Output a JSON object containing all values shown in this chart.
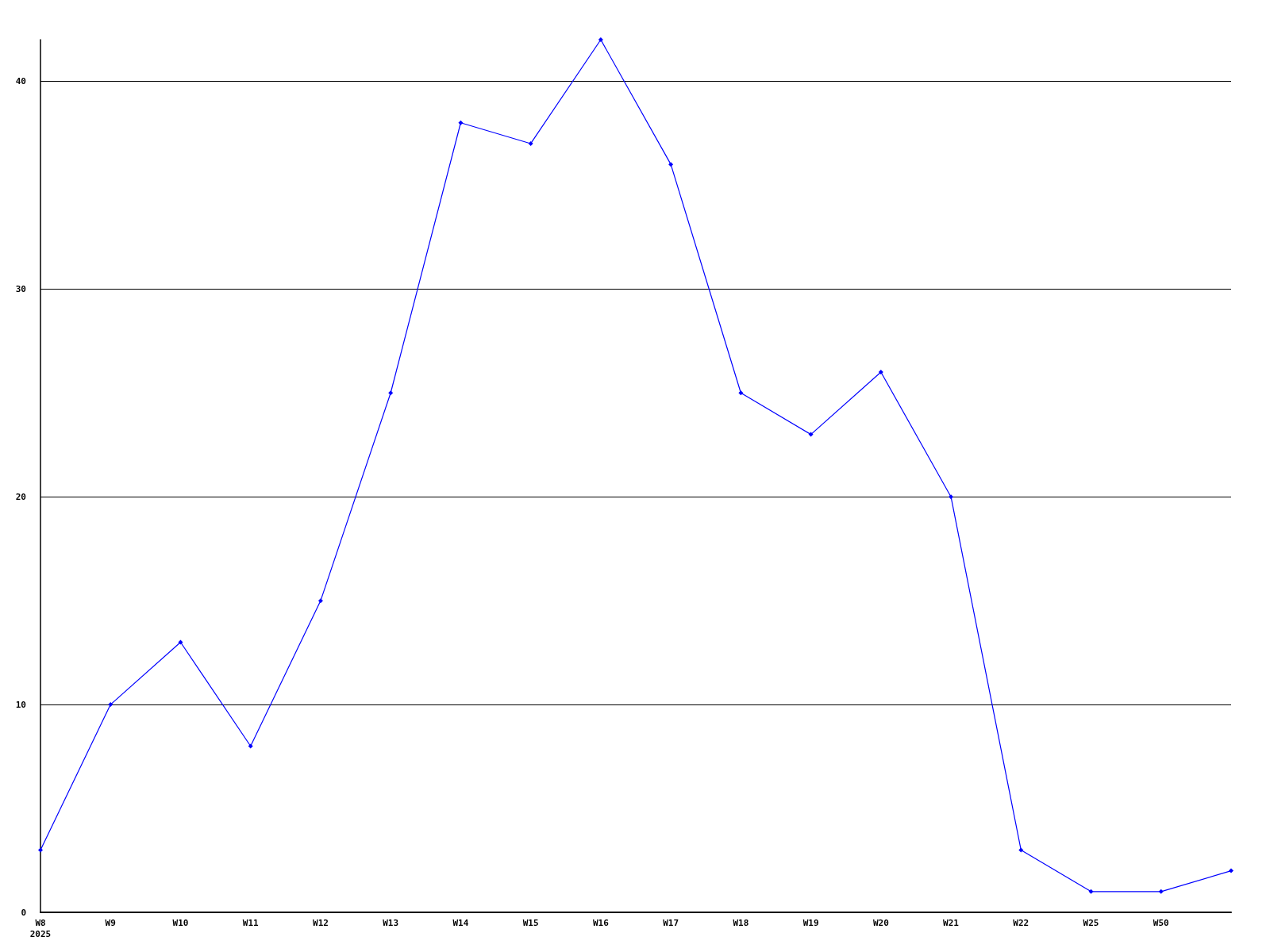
{
  "chart_data": {
    "type": "line",
    "categories": [
      "W8\n2025",
      "W9",
      "W10",
      "W11",
      "W12",
      "W13",
      "W14",
      "W15",
      "W16",
      "W17",
      "W18",
      "W19",
      "W20",
      "W21",
      "W22",
      "W25",
      "W50",
      null
    ],
    "series": [
      {
        "color": "#0000ff",
        "values": [
          3,
          10,
          13,
          8,
          15,
          25,
          38,
          37,
          42,
          36,
          25,
          23,
          26,
          20,
          3,
          1,
          1,
          2
        ]
      }
    ],
    "ylim": [
      0,
      42
    ],
    "yticks": [
      0,
      10,
      20,
      30,
      40
    ],
    "grid": "y",
    "marker": "diamond",
    "line_style": "solid"
  }
}
